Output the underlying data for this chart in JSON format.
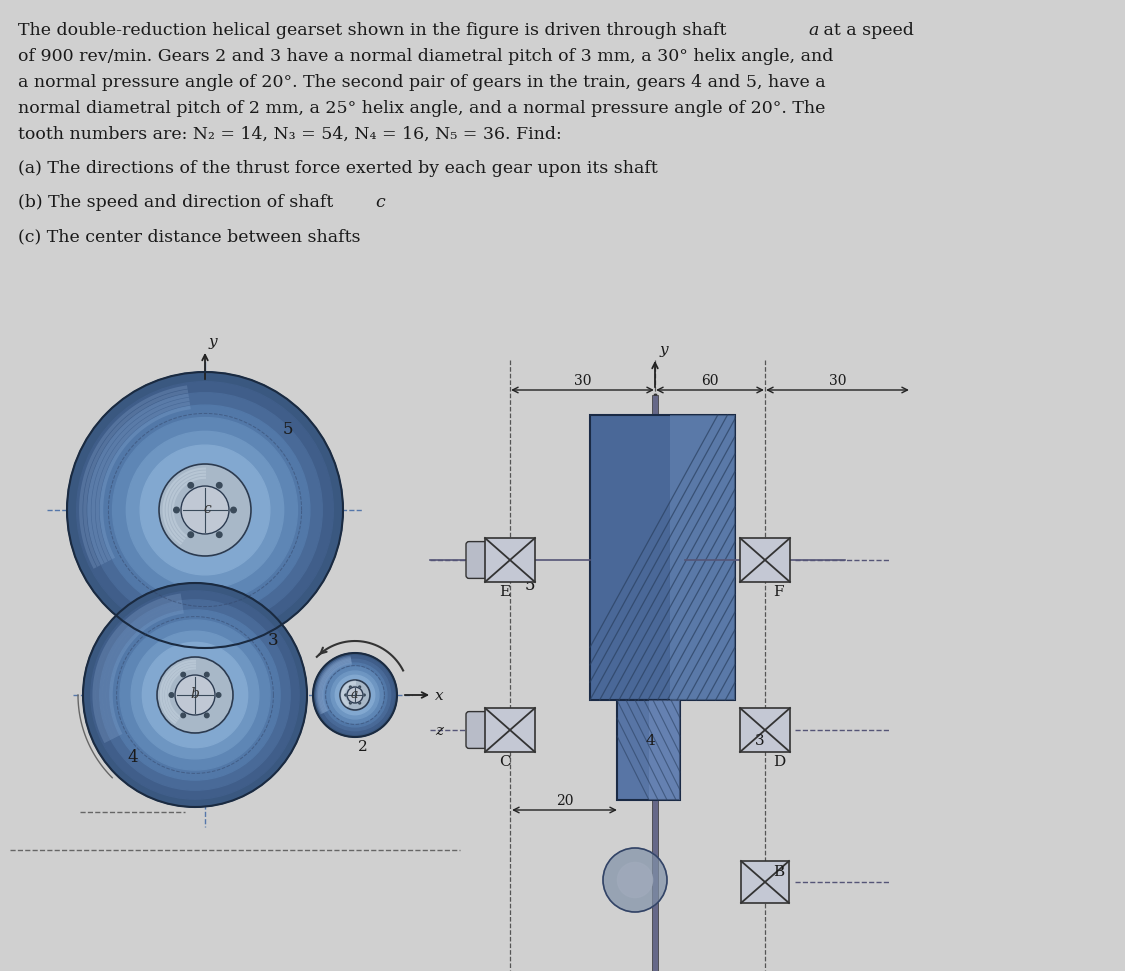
{
  "bg_color": "#d0d0d0",
  "text_color": "#1a1a1a",
  "line1": "The double-reduction helical gearset shown in the figure is driven through shaft ",
  "line1_italic": "a",
  "line1_end": " at a speed",
  "line2": "of 900 rev/min. Gears 2 and 3 have a normal diametral pitch of 3 mm, a 30° helix angle, and",
  "line3": "a normal pressure angle of 20°. The second pair of gears in the train, gears 4 and 5, have a",
  "line4": "normal diametral pitch of 2 mm, a 25° helix angle, and a normal pressure angle of 20°. The",
  "line5": "tooth numbers are: N",
  "line5_sub2": "2",
  "line5_mid": " = 14, N",
  "line5_sub3": "3",
  "line5_mid2": " = 54, N",
  "line5_sub4": "4",
  "line5_mid3": " = 16, N",
  "line5_sub5": "5",
  "line5_end": " = 36. Find:",
  "bullet_a": "(a) The directions of the thrust force exerted by each gear upon its shaft",
  "bullet_b": "(b) The speed and direction of shaft ",
  "bullet_b_italic": "c",
  "bullet_c": "(c) The center distance between shafts",
  "gear5_color": "#4a6a9a",
  "gear5_mid_color": "#5a80b5",
  "gear5_light_color": "#8aaad0",
  "gear_hub_color": "#b0bccc",
  "gear_hub_inner": "#d0d8e0",
  "gear_center_color": "#c8ccd4",
  "dim_line_color": "#222222",
  "dashed_line_color": "#5577aa",
  "bearing_box_color": "#c0c4cc",
  "shaft_color": "#333333"
}
